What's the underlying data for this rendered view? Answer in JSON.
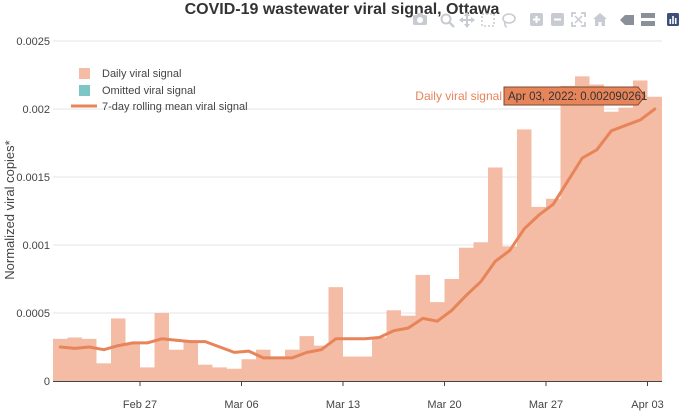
{
  "chart_data": {
    "type": "bar",
    "title": "COVID-19 wastewater viral signal, Ottawa",
    "ylabel": "Normalized viral copies*",
    "xlabel": "",
    "ylim": [
      0,
      0.0025
    ],
    "yticks": [
      0,
      0.0005,
      0.001,
      0.0015,
      0.002,
      0.0025
    ],
    "ytick_labels": [
      "0",
      "0.0005",
      "0.001",
      "0.0015",
      "0.002",
      "0.0025"
    ],
    "xticks": [
      {
        "date": "2022-02-27",
        "label": "Feb 27"
      },
      {
        "date": "2022-03-06",
        "label": "Mar 06"
      },
      {
        "date": "2022-03-13",
        "label": "Mar 13"
      },
      {
        "date": "2022-03-20",
        "label": "Mar 20"
      },
      {
        "date": "2022-03-27",
        "label": "Mar 27"
      },
      {
        "date": "2022-04-03",
        "label": "Apr 03"
      }
    ],
    "x_range": [
      "2022-02-21",
      "2022-04-03"
    ],
    "grid": true,
    "legend_position": "top-left",
    "colors": {
      "bars": "#f4bca4",
      "line": "#e7845a",
      "omitted": "#7cc6c6"
    },
    "series": [
      {
        "name": "Daily viral signal",
        "kind": "bar",
        "x": [
          "2022-02-21",
          "2022-02-22",
          "2022-02-23",
          "2022-02-24",
          "2022-02-25",
          "2022-02-26",
          "2022-02-27",
          "2022-02-28",
          "2022-03-01",
          "2022-03-02",
          "2022-03-03",
          "2022-03-04",
          "2022-03-05",
          "2022-03-06",
          "2022-03-07",
          "2022-03-08",
          "2022-03-09",
          "2022-03-10",
          "2022-03-11",
          "2022-03-12",
          "2022-03-13",
          "2022-03-14",
          "2022-03-15",
          "2022-03-16",
          "2022-03-17",
          "2022-03-18",
          "2022-03-19",
          "2022-03-20",
          "2022-03-21",
          "2022-03-22",
          "2022-03-23",
          "2022-03-24",
          "2022-03-25",
          "2022-03-26",
          "2022-03-27",
          "2022-03-28",
          "2022-03-29",
          "2022-03-30",
          "2022-03-31",
          "2022-04-01",
          "2022-04-02",
          "2022-04-03"
        ],
        "values": [
          0.00031,
          0.00032,
          0.00031,
          0.00013,
          0.00046,
          0.00028,
          0.0001,
          0.0005,
          0.00023,
          0.00029,
          0.00012,
          0.0001,
          9e-05,
          0.00016,
          0.00023,
          0.00018,
          0.00023,
          0.00033,
          0.00026,
          0.00069,
          0.00018,
          0.00018,
          0.00032,
          0.00052,
          0.00048,
          0.00078,
          0.00058,
          0.00075,
          0.00098,
          0.00102,
          0.00157,
          0.00099,
          0.00185,
          0.00128,
          0.00134,
          0.00217,
          0.00224,
          0.00218,
          0.00198,
          0.00201,
          0.00221,
          0.00209
        ]
      },
      {
        "name": "Omitted viral signal",
        "kind": "bar",
        "x": [],
        "values": []
      },
      {
        "name": "7-day rolling mean viral signal",
        "kind": "line",
        "x": [
          "2022-02-21",
          "2022-02-22",
          "2022-02-23",
          "2022-02-24",
          "2022-02-25",
          "2022-02-26",
          "2022-02-27",
          "2022-02-28",
          "2022-03-01",
          "2022-03-02",
          "2022-03-03",
          "2022-03-04",
          "2022-03-05",
          "2022-03-06",
          "2022-03-07",
          "2022-03-08",
          "2022-03-09",
          "2022-03-10",
          "2022-03-11",
          "2022-03-12",
          "2022-03-13",
          "2022-03-14",
          "2022-03-15",
          "2022-03-16",
          "2022-03-17",
          "2022-03-18",
          "2022-03-19",
          "2022-03-20",
          "2022-03-21",
          "2022-03-22",
          "2022-03-23",
          "2022-03-24",
          "2022-03-25",
          "2022-03-26",
          "2022-03-27",
          "2022-03-28",
          "2022-03-29",
          "2022-03-30",
          "2022-03-31",
          "2022-04-01",
          "2022-04-02",
          "2022-04-03"
        ],
        "values": [
          0.00025,
          0.00024,
          0.00025,
          0.00023,
          0.00026,
          0.00028,
          0.00028,
          0.00031,
          0.0003,
          0.00029,
          0.00029,
          0.00025,
          0.00021,
          0.00022,
          0.00017,
          0.00017,
          0.00017,
          0.00021,
          0.00023,
          0.00031,
          0.00031,
          0.00031,
          0.00032,
          0.00037,
          0.00039,
          0.00046,
          0.00044,
          0.00052,
          0.00063,
          0.00073,
          0.00088,
          0.00096,
          0.00112,
          0.00122,
          0.0013,
          0.00147,
          0.00164,
          0.0017,
          0.00184,
          0.00188,
          0.00192,
          0.002
        ]
      }
    ],
    "hover": {
      "series_label": "Daily viral signal",
      "text": "Apr 03, 2022: 0.002090261",
      "date": "2022-04-03",
      "value": 0.002090261
    }
  },
  "modebar": {
    "buttons": [
      "camera-icon",
      "zoom-icon",
      "pan-icon",
      "box-select-icon",
      "lasso-icon",
      "zoom-in-icon",
      "zoom-out-icon",
      "autoscale-icon",
      "home-icon",
      "hover-closest-icon",
      "hover-compare-icon",
      "plotly-logo-icon"
    ]
  }
}
